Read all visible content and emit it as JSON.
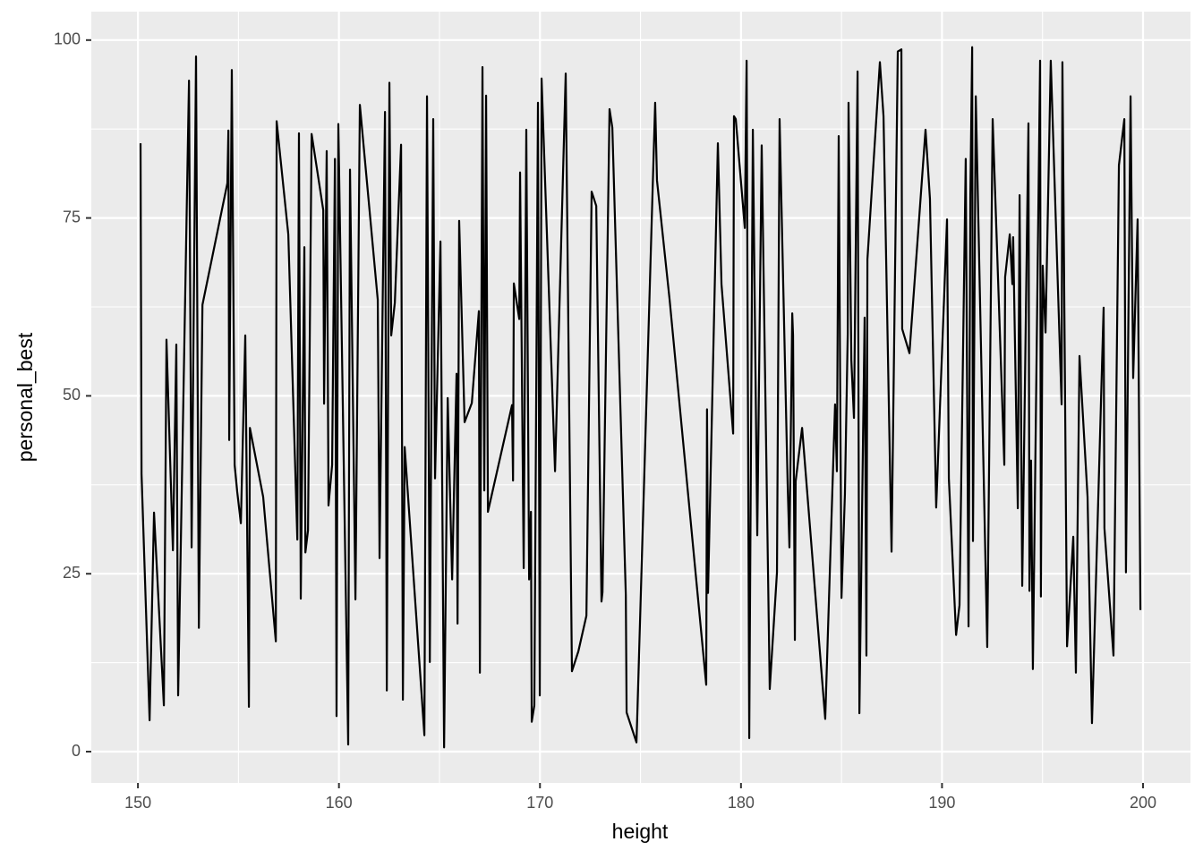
{
  "chart_data": {
    "type": "line",
    "x_label": "height",
    "y_label": "personal_best",
    "xlim": [
      147.68,
      202.36
    ],
    "ylim": [
      -4.4,
      104.0
    ],
    "xticks": [
      150,
      160,
      170,
      180,
      190,
      200
    ],
    "yticks": [
      0,
      25,
      50,
      75,
      100
    ],
    "xminor": [
      155,
      165,
      175,
      185,
      195
    ],
    "yminor": [
      12.5,
      37.5,
      62.5,
      87.5
    ],
    "grid": true,
    "color": "#000000",
    "panel_color": "#EBEBEB",
    "x": [
      150.13,
      150.18,
      150.58,
      150.8,
      151.29,
      151.42,
      151.74,
      151.91,
      152.0,
      152.54,
      152.67,
      152.89,
      153.03,
      153.21,
      154.45,
      154.5,
      154.54,
      154.67,
      154.81,
      154.94,
      155.12,
      155.34,
      155.52,
      155.57,
      156.23,
      156.86,
      156.9,
      157.48,
      157.93,
      158.01,
      158.1,
      158.28,
      158.33,
      158.46,
      158.64,
      159.22,
      159.26,
      159.39,
      159.48,
      159.66,
      159.8,
      159.88,
      159.97,
      160.46,
      160.55,
      160.82,
      161.04,
      161.93,
      162.02,
      162.29,
      162.38,
      162.51,
      162.6,
      162.78,
      163.09,
      163.18,
      163.27,
      164.25,
      164.38,
      164.52,
      164.69,
      164.78,
      165.05,
      165.23,
      165.41,
      165.63,
      165.85,
      165.9,
      165.98,
      166.25,
      166.61,
      166.96,
      167.01,
      167.14,
      167.23,
      167.32,
      167.41,
      168.61,
      168.66,
      168.7,
      168.97,
      169.01,
      169.19,
      169.32,
      169.46,
      169.55,
      169.59,
      169.72,
      169.9,
      169.99,
      170.08,
      170.75,
      171.28,
      171.59,
      171.91,
      172.31,
      172.57,
      172.8,
      173.06,
      173.11,
      173.46,
      173.6,
      174.27,
      174.31,
      174.8,
      174.84,
      175.73,
      175.82,
      176.45,
      178.27,
      178.31,
      178.36,
      178.85,
      179.03,
      179.61,
      179.65,
      179.74,
      180.19,
      180.28,
      180.41,
      180.59,
      180.81,
      181.03,
      181.43,
      181.79,
      181.92,
      182.32,
      182.41,
      182.55,
      182.59,
      182.68,
      182.72,
      183.04,
      184.19,
      184.68,
      184.77,
      184.86,
      185.0,
      185.17,
      185.31,
      185.35,
      185.49,
      185.62,
      185.8,
      185.89,
      186.15,
      186.24,
      186.29,
      186.91,
      187.09,
      187.49,
      187.8,
      187.98,
      188.02,
      188.38,
      189.18,
      189.4,
      189.71,
      190.25,
      190.34,
      190.7,
      190.87,
      191.18,
      191.32,
      191.41,
      191.5,
      191.54,
      191.68,
      192.25,
      192.52,
      193.1,
      193.14,
      193.37,
      193.5,
      193.54,
      193.77,
      193.86,
      193.99,
      194.3,
      194.35,
      194.43,
      194.52,
      194.88,
      194.92,
      195.01,
      195.15,
      195.41,
      195.95,
      195.99,
      196.22,
      196.53,
      196.66,
      196.84,
      197.24,
      197.46,
      198.04,
      198.08,
      198.53,
      198.8,
      199.07,
      199.15,
      199.38,
      199.51,
      199.73,
      199.87
    ],
    "y": [
      85.5,
      39,
      4.4,
      33.6,
      6.5,
      57.9,
      28.3,
      57.2,
      7.9,
      94.3,
      28.7,
      97.7,
      17.4,
      62.8,
      79.9,
      87.3,
      43.8,
      95.8,
      40.3,
      36.5,
      32.1,
      58.5,
      6.3,
      45.5,
      35.8,
      15.5,
      88.6,
      72.7,
      29.8,
      86.9,
      21.5,
      70.9,
      28,
      31.1,
      86.8,
      76.1,
      48.9,
      84.4,
      34.6,
      40.3,
      83.3,
      5,
      88.2,
      1,
      81.8,
      21.4,
      90.9,
      63.5,
      27.2,
      89.9,
      8.6,
      94,
      58.5,
      63.1,
      85.3,
      7.3,
      42.8,
      2.3,
      92.1,
      12.6,
      88.9,
      38.4,
      71.7,
      0.6,
      49.7,
      24.2,
      53.1,
      18,
      74.6,
      46.3,
      49,
      61.9,
      11.1,
      96.2,
      36.7,
      92.2,
      33.7,
      48.7,
      38.1,
      65.8,
      60.8,
      81.4,
      25.8,
      87.4,
      24.2,
      33.7,
      4.2,
      6.5,
      91.2,
      7.9,
      94.6,
      39.4,
      95.3,
      11.3,
      14.1,
      19.1,
      78.7,
      76.7,
      21.1,
      22.4,
      90.3,
      87.7,
      22,
      5.5,
      1.3,
      5,
      91.2,
      80.3,
      63.5,
      9.4,
      48.1,
      22.3,
      85.5,
      65.7,
      44.7,
      89.3,
      88.9,
      73.6,
      97.1,
      1.9,
      87.4,
      30.4,
      85.2,
      8.8,
      25.2,
      88.9,
      37.7,
      28.7,
      61.6,
      58.5,
      15.7,
      38,
      45.5,
      4.6,
      48.8,
      39.4,
      86.5,
      21.6,
      36.2,
      58.7,
      91.2,
      55,
      46.9,
      95.6,
      5.4,
      61,
      13.5,
      69.2,
      96.9,
      89.3,
      28.1,
      98.4,
      98.7,
      59.4,
      56,
      87.4,
      77.7,
      34.3,
      74.8,
      38.4,
      16.4,
      20.6,
      83.3,
      17.6,
      78.2,
      99,
      29.6,
      92.1,
      14.7,
      88.9,
      40.3,
      66.7,
      72.7,
      65.7,
      72.3,
      34.2,
      78.2,
      23.3,
      88.3,
      22.6,
      40.9,
      11.6,
      97.1,
      21.8,
      68.3,
      58.9,
      97.1,
      48.8,
      96.9,
      14.8,
      30.2,
      11.1,
      55.6,
      35.8,
      4,
      62.4,
      31.4,
      13.5,
      82.4,
      88.9,
      25.2,
      92.1,
      52.5,
      74.8,
      19.9
    ]
  }
}
